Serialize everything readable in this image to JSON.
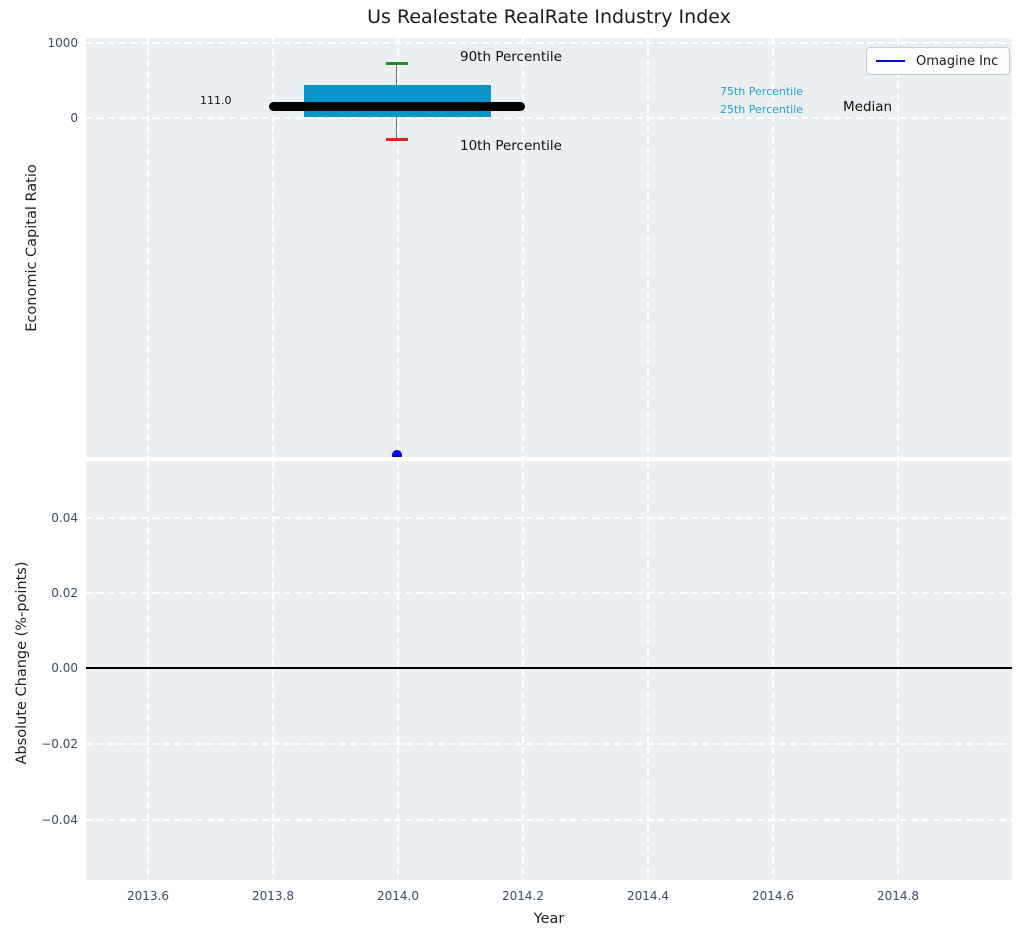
{
  "title": "Us Realestate RealRate Industry Index",
  "xlabel": "Year",
  "xticks": [
    "2013.6",
    "2013.8",
    "2014.0",
    "2014.2",
    "2014.4",
    "2014.6",
    "2014.8"
  ],
  "top_plot": {
    "ylabel": "Economic Capital Ratio",
    "yticks": [
      "1000",
      "0"
    ],
    "annotations": {
      "p90_label": "90th Percentile",
      "p10_label": "10th Percentile",
      "p75_label": "75th Percentile",
      "p25_label": "25th Percentile",
      "median_label": "Median",
      "median_value": "111.0"
    }
  },
  "bottom_plot": {
    "ylabel": "Absolute Change (%-points)",
    "yticks": [
      "0.04",
      "0.02",
      "0.00",
      "−0.02",
      "−0.04"
    ]
  },
  "legend": {
    "label": "Omagine Inc"
  },
  "colors": {
    "axes_background": "#ebeff1",
    "grid": "#ffffff",
    "tick_label": "#3b4a61",
    "box_fill": "#0b95c9",
    "percentile_text": "#22a0d3",
    "cap_90th": "#228b22",
    "cap_10th": "#e62020",
    "median_line": "#000000",
    "company_line": "#0000ee",
    "zero_line": "#000000"
  },
  "chart_data": [
    {
      "type": "boxplot",
      "title": "Us Realestate RealRate Industry Index",
      "xlabel": "Year",
      "ylabel": "Economic Capital Ratio",
      "xlim": [
        2013.5,
        2014.99
      ],
      "ylim": [
        -4650,
        1070
      ],
      "yticks": [
        0,
        1000
      ],
      "xticks": [
        2013.6,
        2013.8,
        2014.0,
        2014.2,
        2014.4,
        2014.6,
        2014.8
      ],
      "grid": true,
      "box": {
        "x": 2014.0,
        "p10": -330,
        "p25": -20,
        "median": 111.0,
        "p75": 415,
        "p90": 710,
        "box_width_years": 0.3,
        "median_line_width_years": 0.4
      },
      "series": [
        {
          "name": "Omagine Inc",
          "type": "scatter",
          "x": [
            2014.0
          ],
          "y": [
            -4600
          ],
          "color": "#0000ee",
          "note": "point clipped at bottom edge of axes"
        }
      ],
      "legend_position": "upper right"
    },
    {
      "type": "line",
      "xlabel": "Year",
      "ylabel": "Absolute Change (%-points)",
      "xlim": [
        2013.5,
        2014.99
      ],
      "ylim": [
        -0.056,
        0.055
      ],
      "yticks": [
        -0.04,
        -0.02,
        0.0,
        0.02,
        0.04
      ],
      "xticks": [
        2013.6,
        2013.8,
        2014.0,
        2014.2,
        2014.4,
        2014.6,
        2014.8
      ],
      "grid": true,
      "zero_line": 0.0,
      "series": []
    }
  ]
}
